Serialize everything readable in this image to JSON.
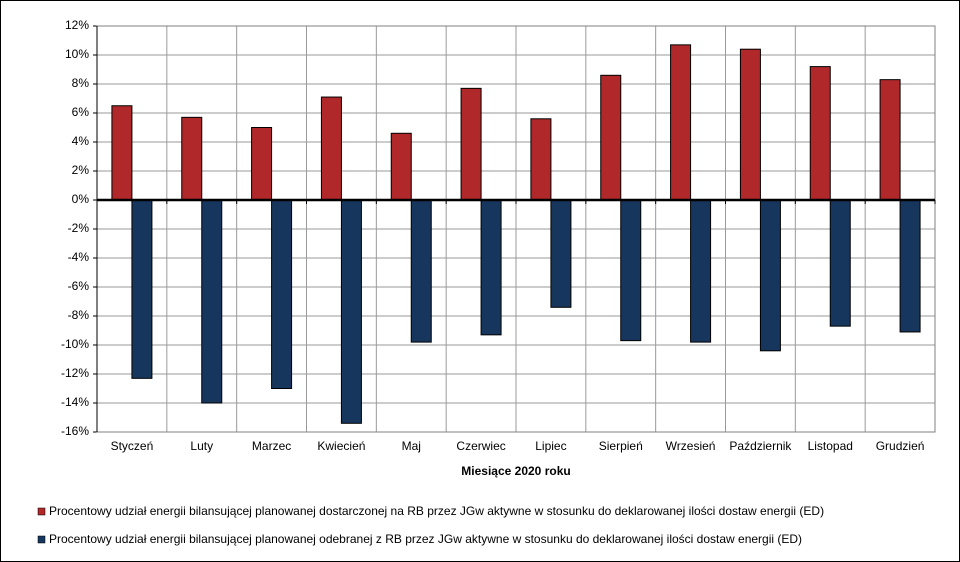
{
  "chart_data": {
    "type": "bar",
    "x_label": "Miesiące 2020  roku",
    "categories": [
      "Styczeń",
      "Luty",
      "Marzec",
      "Kwiecień",
      "Maj",
      "Czerwiec",
      "Lipiec",
      "Sierpień",
      "Wrzesień",
      "Październik",
      "Listopad",
      "Grudzień"
    ],
    "series": [
      {
        "name": "Procentowy udział energii bilansującej planowanej dostarczonej na RB przez JGw aktywne w stosunku do deklarowanej ilości dostaw energii (ED)",
        "color": "#b0282a",
        "values": [
          6.5,
          5.7,
          5.0,
          7.1,
          4.6,
          7.7,
          5.6,
          8.6,
          10.7,
          10.4,
          9.2,
          8.3
        ]
      },
      {
        "name": "Procentowy udział energii bilansującej planowanej odebranej z RB przez JGw aktywne w stosunku do deklarowanej ilości dostaw energii (ED)",
        "color": "#17365d",
        "values": [
          -12.3,
          -14.0,
          -13.0,
          -15.4,
          -9.8,
          -9.3,
          -7.4,
          -9.7,
          -9.8,
          -10.4,
          -8.7,
          -9.1
        ]
      }
    ],
    "ylim": [
      -16,
      12
    ],
    "yticks": [
      {
        "value": -16,
        "label": "-16%"
      },
      {
        "value": -14,
        "label": "-14%"
      },
      {
        "value": -12,
        "label": "-12%"
      },
      {
        "value": -10,
        "label": "-10%"
      },
      {
        "value": -8,
        "label": "-8%"
      },
      {
        "value": -6,
        "label": "-6%"
      },
      {
        "value": -4,
        "label": "-4%"
      },
      {
        "value": -2,
        "label": "-2%"
      },
      {
        "value": 0,
        "label": "0%"
      },
      {
        "value": 2,
        "label": "2%"
      },
      {
        "value": 4,
        "label": "4%"
      },
      {
        "value": 6,
        "label": "6%"
      },
      {
        "value": 8,
        "label": "8%"
      },
      {
        "value": 10,
        "label": "10%"
      },
      {
        "value": 12,
        "label": "12%"
      }
    ],
    "grid": true
  }
}
